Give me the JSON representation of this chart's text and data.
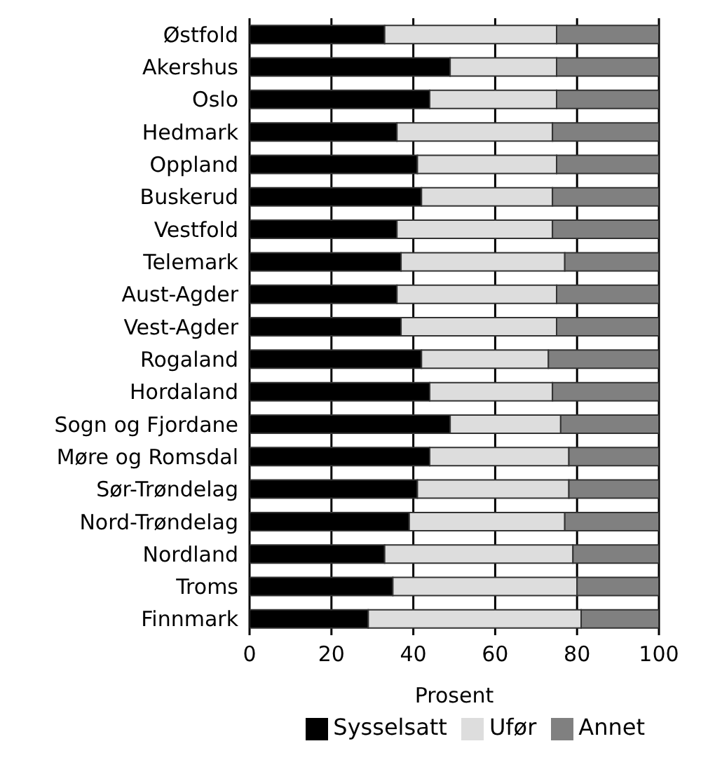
{
  "chart_data": {
    "type": "bar",
    "orientation": "horizontal",
    "stacked": true,
    "xlabel": "Prosent",
    "xlim": [
      0,
      100
    ],
    "xticks": [
      0,
      20,
      40,
      60,
      80,
      100
    ],
    "grid": "x",
    "legend": "bottom",
    "categories": [
      "Østfold",
      "Akershus",
      "Oslo",
      "Hedmark",
      "Oppland",
      "Buskerud",
      "Vestfold",
      "Telemark",
      "Aust-Agder",
      "Vest-Agder",
      "Rogaland",
      "Hordaland",
      "Sogn og Fjordane",
      "Møre og Romsdal",
      "Sør-Trøndelag",
      "Nord-Trøndelag",
      "Nordland",
      "Troms",
      "Finnmark"
    ],
    "series": [
      {
        "name": "Sysselsatt",
        "color": "#000000",
        "values": [
          33,
          49,
          44,
          36,
          41,
          42,
          36,
          37,
          36,
          37,
          42,
          44,
          49,
          44,
          41,
          39,
          33,
          35,
          29
        ]
      },
      {
        "name": "Ufør",
        "color": "#dddddd",
        "values": [
          42,
          26,
          31,
          38,
          34,
          32,
          38,
          40,
          39,
          38,
          31,
          30,
          27,
          34,
          37,
          38,
          46,
          45,
          52
        ]
      },
      {
        "name": "Annet",
        "color": "#808080",
        "values": [
          25,
          25,
          25,
          26,
          25,
          26,
          26,
          23,
          25,
          25,
          27,
          26,
          24,
          22,
          22,
          23,
          21,
          20,
          19
        ]
      }
    ]
  }
}
